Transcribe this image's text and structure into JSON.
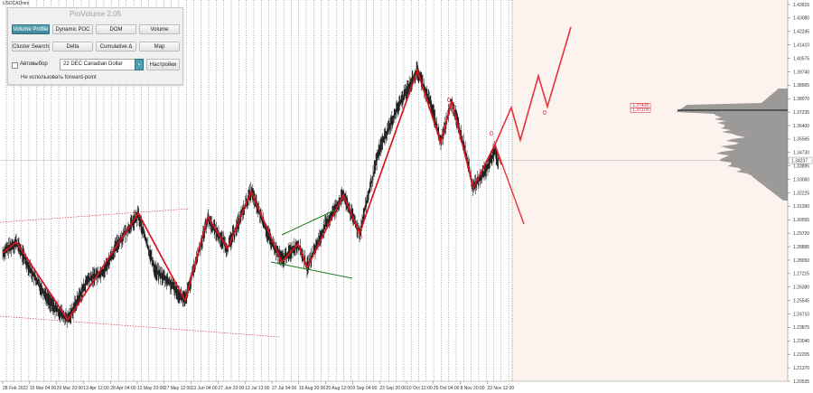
{
  "symbol_label": "USDCADmm",
  "panel": {
    "title": "ProVolume 2.05",
    "buttons": [
      {
        "label": "Volume Profile",
        "active": true
      },
      {
        "label": "Dynamic POC",
        "active": false
      },
      {
        "label": "DOM",
        "active": false
      },
      {
        "label": "Volume",
        "active": false
      },
      {
        "label": "Cluster Search",
        "active": false
      },
      {
        "label": "Delta",
        "active": false
      },
      {
        "label": "Cumulative Δ",
        "active": false
      },
      {
        "label": "Map",
        "active": false
      }
    ],
    "autoselect_label": "Автовыбор",
    "instrument_value": "22 DEC Canadian Dollar",
    "settings_label": "Настройки",
    "forward_point_label": "Не использовать forward-point"
  },
  "price_axis": [
    "1.43915",
    "1.43080",
    "1.42245",
    "1.41410",
    "1.40575",
    "1.39740",
    "1.38905",
    "1.38070",
    "1.37235",
    "1.36400",
    "1.35565",
    "1.34730",
    "1.33895",
    "1.33060",
    "1.32225",
    "1.31390",
    "1.30555",
    "1.29720",
    "1.28885",
    "1.28050",
    "1.27215",
    "1.26380",
    "1.25545",
    "1.24710",
    "1.23875",
    "1.23040",
    "1.22205",
    "1.21370",
    "1.20535"
  ],
  "current_price": "1.34237",
  "poc_tags": [
    "1.37428",
    "1.37378"
  ],
  "time_axis": [
    "28 Feb 2022",
    "15 Mar 04:00",
    "29 Mar 20:00",
    "13 Apr 12:00",
    "28 Apr 04:00",
    "12 May 20:00",
    "27 May 12:00",
    "13 Jun 04:00",
    "27 Jun 20:00",
    "12 Jul 12:00",
    "27 Jul 04:00",
    "10 Aug 20:00",
    "25 Aug 12:00",
    "9 Sep 04:00",
    "23 Sep 20:00",
    "10 Oct 12:00",
    "25 Oct 04:00",
    "8 Nov 20:00",
    "23 Nov 12:00"
  ],
  "wave_labels": [
    "0",
    "0",
    "0",
    "0"
  ],
  "colors": {
    "zigzag": "#d9141c",
    "forecast": "#e8323a",
    "trend": "#1a7a1a",
    "profile": "#8a8a8a",
    "future_bg": "#fdf3ee",
    "grid": "#444444"
  }
}
